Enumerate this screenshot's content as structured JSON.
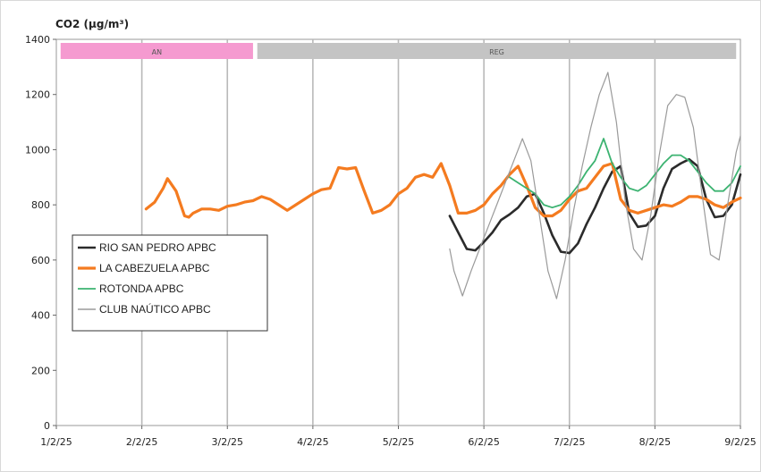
{
  "chart_data": {
    "type": "line",
    "ylabel": "CO2 (µg/m³)",
    "ylim": [
      0,
      1400
    ],
    "yticks": [
      0,
      200,
      400,
      600,
      800,
      1000,
      1200,
      1400
    ],
    "xticks": [
      "1/2/25",
      "2/2/25",
      "3/2/25",
      "4/2/25",
      "5/2/25",
      "6/2/25",
      "7/2/25",
      "8/2/25",
      "9/2/25"
    ],
    "grid": "vertical",
    "legend_position": "left-middle",
    "bands": [
      {
        "label": "AN",
        "from": 0.05,
        "to": 2.3,
        "color": "#f59ad0"
      },
      {
        "label": "REG",
        "from": 2.35,
        "to": 7.95,
        "color": "#c4c4c4"
      }
    ],
    "series": [
      {
        "name": "RIO SAN PEDRO APBC",
        "color": "#2b2b2b",
        "width": 2.6,
        "x": [
          4.6,
          4.7,
          4.8,
          4.9,
          5.0,
          5.1,
          5.2,
          5.3,
          5.4,
          5.5,
          5.6,
          5.7,
          5.8,
          5.9,
          6.0,
          6.1,
          6.2,
          6.3,
          6.4,
          6.5,
          6.6,
          6.7,
          6.8,
          6.9,
          7.0,
          7.1,
          7.2,
          7.3,
          7.4,
          7.5,
          7.6,
          7.7,
          7.8,
          7.9,
          8.0
        ],
        "y": [
          760,
          700,
          640,
          635,
          665,
          700,
          745,
          765,
          790,
          830,
          840,
          770,
          690,
          630,
          625,
          660,
          730,
          790,
          860,
          920,
          940,
          770,
          720,
          725,
          760,
          860,
          930,
          950,
          965,
          940,
          820,
          755,
          760,
          800,
          910
        ]
      },
      {
        "name": "LA CABEZUELA  APBC",
        "color": "#f47b20",
        "width": 3.2,
        "x": [
          1.05,
          1.15,
          1.25,
          1.3,
          1.4,
          1.5,
          1.55,
          1.6,
          1.7,
          1.8,
          1.9,
          2.0,
          2.1,
          2.2,
          2.3,
          2.4,
          2.5,
          2.6,
          2.7,
          2.8,
          2.9,
          3.0,
          3.1,
          3.2,
          3.3,
          3.4,
          3.5,
          3.6,
          3.7,
          3.8,
          3.9,
          4.0,
          4.1,
          4.2,
          4.3,
          4.4,
          4.5,
          4.6,
          4.7,
          4.8,
          4.9,
          5.0,
          5.1,
          5.2,
          5.3,
          5.4,
          5.5,
          5.6,
          5.7,
          5.8,
          5.9,
          6.0,
          6.1,
          6.2,
          6.3,
          6.4,
          6.5,
          6.6,
          6.7,
          6.8,
          6.9,
          7.0,
          7.1,
          7.2,
          7.3,
          7.4,
          7.5,
          7.6,
          7.7,
          7.8,
          7.9,
          8.0
        ],
        "y": [
          785,
          810,
          860,
          895,
          850,
          760,
          755,
          770,
          785,
          785,
          780,
          795,
          800,
          810,
          815,
          830,
          820,
          800,
          780,
          800,
          820,
          840,
          855,
          860,
          935,
          930,
          935,
          850,
          770,
          780,
          800,
          840,
          860,
          900,
          910,
          900,
          950,
          870,
          770,
          770,
          780,
          800,
          840,
          870,
          910,
          940,
          870,
          790,
          760,
          760,
          780,
          820,
          850,
          860,
          900,
          940,
          950,
          820,
          780,
          770,
          780,
          790,
          800,
          795,
          810,
          830,
          830,
          820,
          800,
          790,
          810,
          825
        ]
      },
      {
        "name": "ROTONDA  APBC",
        "color": "#3cb371",
        "width": 1.8,
        "x": [
          5.3,
          5.4,
          5.5,
          5.6,
          5.7,
          5.8,
          5.9,
          6.0,
          6.1,
          6.2,
          6.3,
          6.4,
          6.5,
          6.6,
          6.7,
          6.8,
          6.9,
          7.0,
          7.1,
          7.2,
          7.3,
          7.4,
          7.5,
          7.6,
          7.7,
          7.8,
          7.9,
          8.0
        ],
        "y": [
          900,
          880,
          860,
          840,
          800,
          790,
          800,
          830,
          870,
          920,
          960,
          1040,
          950,
          900,
          860,
          850,
          870,
          910,
          950,
          980,
          980,
          960,
          920,
          880,
          850,
          850,
          880,
          940
        ]
      },
      {
        "name": "CLUB NAÚTICO  APBC",
        "color": "#9a9a9a",
        "width": 1.2,
        "x": [
          4.6,
          4.65,
          4.75,
          4.85,
          4.95,
          5.05,
          5.15,
          5.25,
          5.35,
          5.45,
          5.55,
          5.65,
          5.75,
          5.85,
          5.95,
          6.05,
          6.15,
          6.25,
          6.35,
          6.45,
          6.55,
          6.65,
          6.75,
          6.85,
          6.95,
          7.05,
          7.15,
          7.25,
          7.35,
          7.45,
          7.55,
          7.65,
          7.75,
          7.85,
          7.95,
          8.0
        ],
        "y": [
          640,
          560,
          470,
          560,
          640,
          720,
          800,
          880,
          960,
          1040,
          960,
          760,
          560,
          460,
          600,
          780,
          940,
          1080,
          1200,
          1280,
          1100,
          820,
          640,
          600,
          760,
          980,
          1160,
          1200,
          1190,
          1080,
          840,
          620,
          600,
          800,
          990,
          1050
        ]
      }
    ]
  }
}
